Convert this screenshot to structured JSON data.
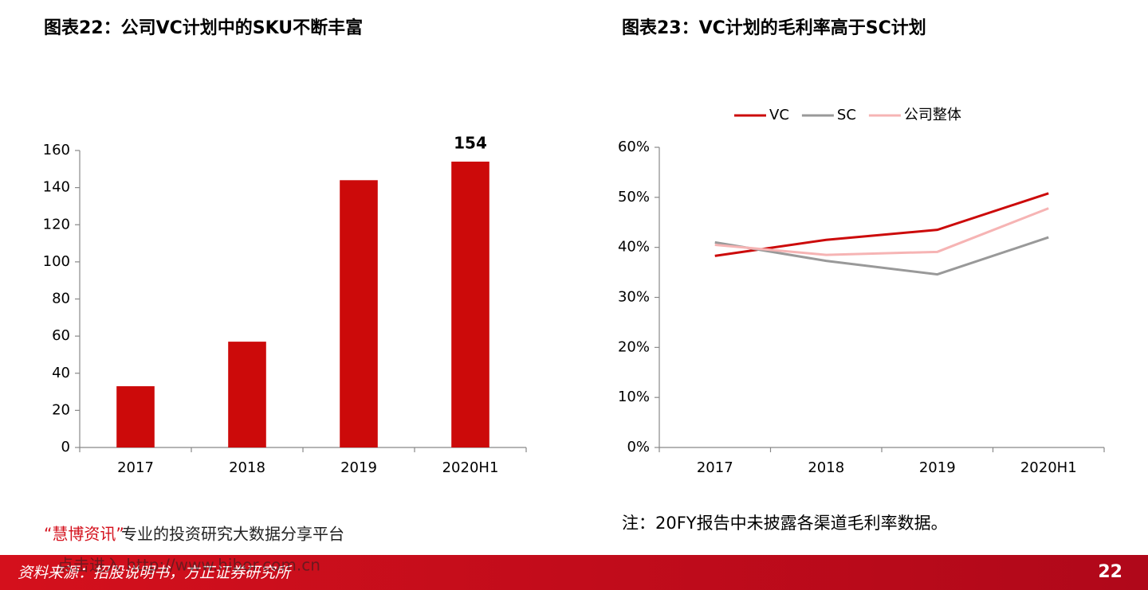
{
  "chart_data": [
    {
      "type": "bar",
      "title": "图表22：公司VC计划中的SKU不断丰富",
      "categories": [
        "2017",
        "2018",
        "2019",
        "2020H1"
      ],
      "values": [
        33,
        57,
        144,
        154
      ],
      "value_labels": [
        null,
        null,
        null,
        "154"
      ],
      "color": "#cc0a0a",
      "ylim": [
        0,
        160
      ],
      "yticks": [
        0,
        20,
        40,
        60,
        80,
        100,
        120,
        140,
        160
      ],
      "grid": false
    },
    {
      "type": "line",
      "title": "图表23：VC计划的毛利率高于SC计划",
      "categories": [
        "2017",
        "2018",
        "2019",
        "2020H1"
      ],
      "series": [
        {
          "name": "VC",
          "color": "#cc0a0a",
          "values": [
            38.3,
            41.5,
            43.5,
            50.8
          ]
        },
        {
          "name": "SC",
          "color": "#999999",
          "values": [
            41,
            37.3,
            34.6,
            42
          ]
        },
        {
          "name": "公司整体",
          "color": "#f6b4b4",
          "values": [
            40.5,
            38.5,
            39.1,
            47.8
          ]
        }
      ],
      "ylim": [
        0,
        60
      ],
      "yticks": [
        {
          "value": 0,
          "label": "0%"
        },
        {
          "value": 10,
          "label": "10%"
        },
        {
          "value": 20,
          "label": "20%"
        },
        {
          "value": 30,
          "label": "30%"
        },
        {
          "value": 40,
          "label": "40%"
        },
        {
          "value": 50,
          "label": "50%"
        },
        {
          "value": 60,
          "label": "60%"
        }
      ],
      "grid": false,
      "legend": "top"
    }
  ],
  "note": "注：20FY报告中未披露各渠道毛利率数据。",
  "source": "资料来源：招股说明书，方正证券研究所",
  "page_number": "22",
  "watermark": {
    "brand": "“慧博资讯”",
    "text": "专业的投资研究大数据分享平台",
    "link": "点击进入 http://www.hibor.com.cn"
  }
}
